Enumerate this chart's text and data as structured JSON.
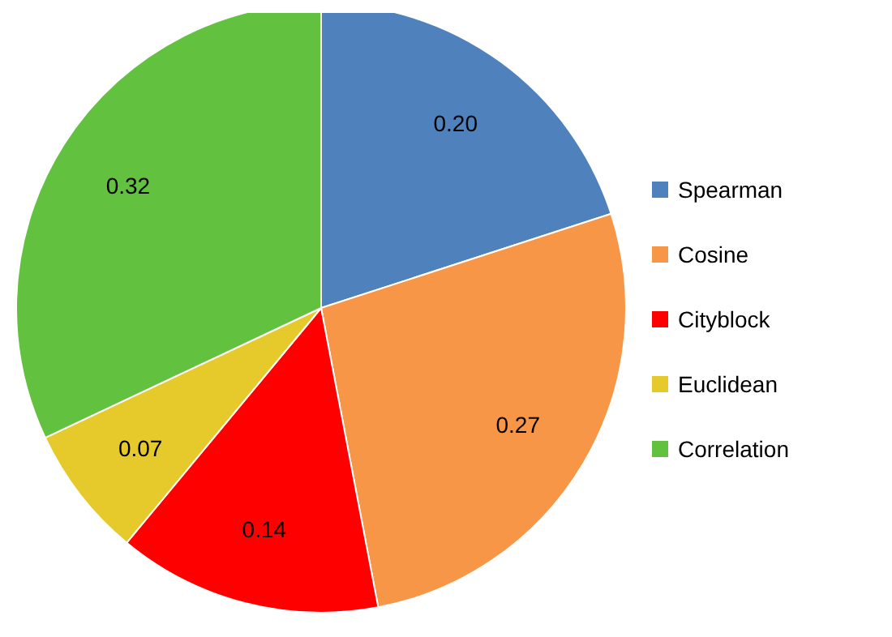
{
  "chart_data": {
    "type": "pie",
    "categories": [
      "Spearman",
      "Cosine",
      "Cityblock",
      "Euclidean",
      "Correlation"
    ],
    "values": [
      0.2,
      0.27,
      0.14,
      0.07,
      0.32
    ],
    "value_labels": [
      "0.20",
      "0.27",
      "0.14",
      "0.07",
      "0.32"
    ],
    "colors": [
      "#4f81bd",
      "#f79646",
      "#ff0000",
      "#e6c92a",
      "#62c23f"
    ],
    "legend": "right"
  }
}
